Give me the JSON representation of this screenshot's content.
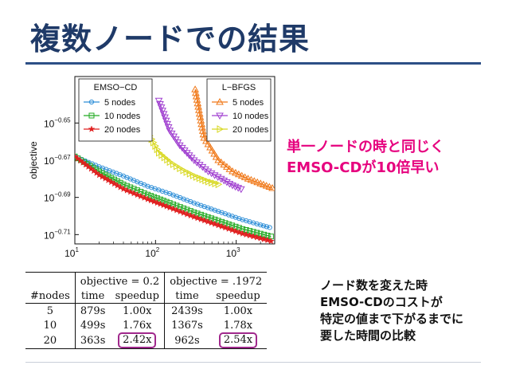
{
  "slide": {
    "title": "複数ノードでの結果",
    "callout1": [
      "単一ノードの時と同じく",
      "EMSO-CDが10倍早い"
    ],
    "callout2": [
      "ノード数を変えた時",
      "EMSO-CDのコストが",
      "特定の値まで下がるまでに",
      "要した時間の比較"
    ],
    "highlight_color": "#a0288c",
    "callout_color": "#e6007e"
  },
  "chart_data": {
    "type": "line",
    "ylabel": "objective",
    "xscale": "log",
    "yscale": "log",
    "xlim": [
      10,
      3000
    ],
    "ylim_exponent": [
      -0.715,
      -0.625
    ],
    "xticks": [
      {
        "label": "10",
        "exp": "1",
        "value": 10
      },
      {
        "label": "10",
        "exp": "2",
        "value": 100
      },
      {
        "label": "10",
        "exp": "3",
        "value": 1000
      }
    ],
    "yticks": [
      {
        "label": "10",
        "exp": "−0.65",
        "value": -0.65
      },
      {
        "label": "10",
        "exp": "−0.67",
        "value": -0.67
      },
      {
        "label": "10",
        "exp": "−0.69",
        "value": -0.69
      },
      {
        "label": "10",
        "exp": "−0.71",
        "value": -0.71
      }
    ],
    "legends": [
      {
        "title": "EMSO−CD",
        "placement": "top-left",
        "entries": [
          {
            "name": "5 nodes",
            "color": "#2f8fd8",
            "marker": "circle"
          },
          {
            "name": "10 nodes",
            "color": "#22aa22",
            "marker": "square"
          },
          {
            "name": "20 nodes",
            "color": "#e02020",
            "marker": "star"
          }
        ]
      },
      {
        "title": "L−BFGS",
        "placement": "top-right",
        "entries": [
          {
            "name": "5 nodes",
            "color": "#f07818",
            "marker": "triangle-up"
          },
          {
            "name": "10 nodes",
            "color": "#a040d0",
            "marker": "triangle-down"
          },
          {
            "name": "20 nodes",
            "color": "#d8d820",
            "marker": "triangle-right"
          }
        ]
      }
    ],
    "series": [
      {
        "name": "EMSO−CD 5 nodes",
        "color": "#2f8fd8",
        "marker": "circle",
        "x": [
          10,
          20,
          40,
          80,
          150,
          300,
          600,
          1200,
          2000,
          2600
        ],
        "y_exp": [
          -0.668,
          -0.6735,
          -0.6785,
          -0.684,
          -0.688,
          -0.693,
          -0.6975,
          -0.702,
          -0.7048,
          -0.7062
        ]
      },
      {
        "name": "EMSO−CD 10 nodes",
        "color": "#22aa22",
        "marker": "square",
        "x": [
          10,
          20,
          40,
          80,
          150,
          300,
          600,
          1200,
          2000,
          2700
        ],
        "y_exp": [
          -0.668,
          -0.676,
          -0.683,
          -0.6885,
          -0.693,
          -0.698,
          -0.7025,
          -0.707,
          -0.7095,
          -0.711
        ]
      },
      {
        "name": "EMSO−CD 20 nodes",
        "color": "#e02020",
        "marker": "star",
        "x": [
          10,
          20,
          40,
          80,
          150,
          300,
          600,
          1200,
          2000,
          2700
        ],
        "y_exp": [
          -0.668,
          -0.678,
          -0.6855,
          -0.691,
          -0.6955,
          -0.7005,
          -0.705,
          -0.7095,
          -0.712,
          -0.7135
        ]
      },
      {
        "name": "L−BFGS 5 nodes",
        "color": "#f07818",
        "marker": "triangle-up",
        "x": [
          310,
          400,
          600,
          900,
          1400,
          2000,
          2800
        ],
        "y_exp": [
          -0.632,
          -0.658,
          -0.67,
          -0.676,
          -0.68,
          -0.6825,
          -0.685
        ]
      },
      {
        "name": "L−BFGS 10 nodes",
        "color": "#a040d0",
        "marker": "triangle-down",
        "x": [
          110,
          150,
          200,
          300,
          450,
          650,
          900,
          1150
        ],
        "y_exp": [
          -0.638,
          -0.654,
          -0.662,
          -0.67,
          -0.676,
          -0.68,
          -0.6835,
          -0.6855
        ]
      },
      {
        "name": "L−BFGS 20 nodes",
        "color": "#d8d820",
        "marker": "triangle-right",
        "x": [
          80,
          110,
          150,
          220,
          320,
          450,
          600
        ],
        "y_exp": [
          -0.655,
          -0.666,
          -0.671,
          -0.6755,
          -0.679,
          -0.6815,
          -0.683
        ]
      }
    ]
  },
  "table": {
    "headers1": [
      "",
      "objective = 0.2",
      "objective = .1972"
    ],
    "headers2": [
      "#nodes",
      "time",
      "speedup",
      "time",
      "speedup"
    ],
    "rows": [
      [
        "5",
        "879s",
        "1.00x",
        "2439s",
        "1.00x"
      ],
      [
        "10",
        "499s",
        "1.76x",
        "1367s",
        "1.78x"
      ],
      [
        "20",
        "363s",
        "2.42x",
        "962s",
        "2.54x"
      ]
    ]
  }
}
